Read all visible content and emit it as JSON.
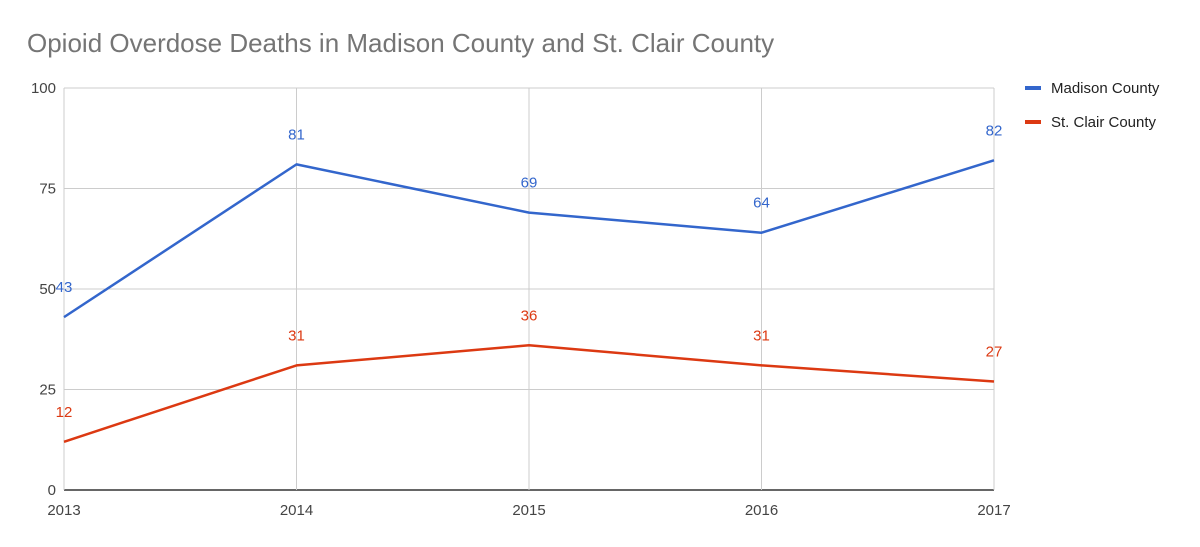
{
  "chart_data": {
    "type": "line",
    "title": "Opioid Overdose Deaths in Madison County and St. Clair County",
    "xlabel": "",
    "ylabel": "",
    "categories": [
      "2013",
      "2014",
      "2015",
      "2016",
      "2017"
    ],
    "ylim": [
      0,
      100
    ],
    "yticks": [
      0,
      25,
      50,
      75,
      100
    ],
    "grid": true,
    "legend_position": "right",
    "series": [
      {
        "name": "Madison County",
        "color": "#3366cc",
        "values": [
          43,
          81,
          69,
          64,
          82
        ]
      },
      {
        "name": "St. Clair County",
        "color": "#dc3912",
        "values": [
          12,
          31,
          36,
          31,
          27
        ]
      }
    ]
  }
}
